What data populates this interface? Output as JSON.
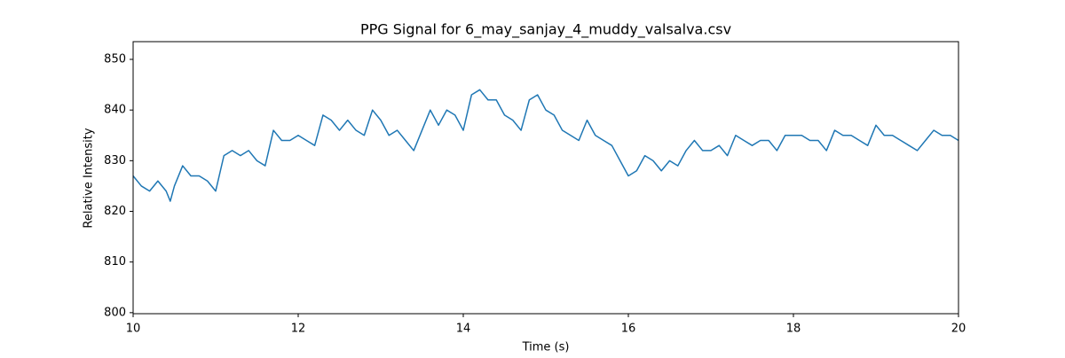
{
  "chart_data": {
    "type": "line",
    "title": "PPG Signal for 6_may_sanjay_4_muddy_valsalva.csv",
    "x_label": "Time (s)",
    "y_label": "Relative Intensity",
    "xlim": [
      10,
      20
    ],
    "ylim": [
      799.8,
      853.5
    ],
    "xticks": [
      10,
      12,
      14,
      16,
      18,
      20
    ],
    "yticks": [
      800,
      810,
      820,
      830,
      840,
      850
    ],
    "grid": false,
    "x": [
      10.0,
      10.1,
      10.2,
      10.3,
      10.4,
      10.45,
      10.5,
      10.6,
      10.7,
      10.8,
      10.9,
      11.0,
      11.1,
      11.2,
      11.3,
      11.4,
      11.5,
      11.6,
      11.7,
      11.8,
      11.9,
      12.0,
      12.1,
      12.2,
      12.3,
      12.4,
      12.5,
      12.6,
      12.7,
      12.8,
      12.9,
      13.0,
      13.1,
      13.2,
      13.3,
      13.4,
      13.5,
      13.6,
      13.7,
      13.8,
      13.9,
      14.0,
      14.1,
      14.2,
      14.3,
      14.4,
      14.5,
      14.6,
      14.7,
      14.8,
      14.9,
      15.0,
      15.1,
      15.2,
      15.3,
      15.4,
      15.5,
      15.6,
      15.7,
      15.8,
      15.9,
      16.0,
      16.1,
      16.2,
      16.3,
      16.4,
      16.5,
      16.6,
      16.7,
      16.8,
      16.9,
      17.0,
      17.1,
      17.2,
      17.3,
      17.4,
      17.5,
      17.6,
      17.7,
      17.8,
      17.9,
      18.0,
      18.1,
      18.2,
      18.3,
      18.4,
      18.5,
      18.6,
      18.7,
      18.8,
      18.9,
      19.0,
      19.1,
      19.2,
      19.3,
      19.4,
      19.5,
      19.6,
      19.7,
      19.8,
      19.9,
      20.0
    ],
    "series": [
      {
        "name": "PPG",
        "color": "#1f77b4",
        "values": [
          827,
          825,
          824,
          826,
          824,
          822,
          825,
          829,
          827,
          827,
          826,
          824,
          831,
          832,
          831,
          832,
          830,
          829,
          836,
          834,
          834,
          835,
          834,
          833,
          839,
          838,
          836,
          838,
          836,
          835,
          840,
          838,
          835,
          836,
          834,
          832,
          836,
          840,
          837,
          840,
          839,
          836,
          843,
          844,
          842,
          842,
          839,
          838,
          836,
          842,
          843,
          840,
          839,
          836,
          835,
          834,
          838,
          835,
          834,
          833,
          830,
          827,
          828,
          831,
          830,
          828,
          830,
          829,
          832,
          834,
          832,
          832,
          833,
          831,
          835,
          834,
          833,
          834,
          834,
          832,
          835,
          835,
          835,
          834,
          834,
          832,
          836,
          835,
          835,
          834,
          833,
          837,
          835,
          835,
          834,
          833,
          832,
          834,
          836,
          835,
          835,
          834
        ]
      }
    ]
  }
}
